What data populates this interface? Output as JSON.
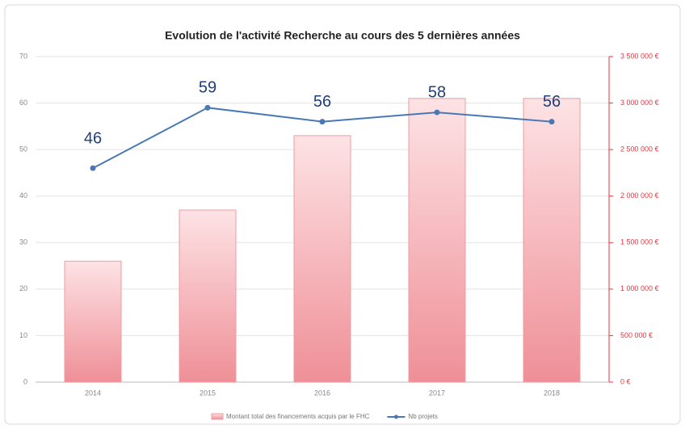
{
  "chart_data": {
    "type": "bar-line",
    "title": "Evolution de l'activité Recherche au cours des 5 dernières années",
    "categories": [
      "2014",
      "2015",
      "2016",
      "2017",
      "2018"
    ],
    "series": [
      {
        "name": "Montant total des financements acquis par le FHC",
        "type": "bar",
        "axis": "y2",
        "color": "#ef9ca2",
        "values": [
          1300000,
          1850000,
          2650000,
          3050000,
          3050000
        ]
      },
      {
        "name": "Nb projets",
        "type": "line",
        "axis": "y",
        "color": "#4a78b5",
        "values": [
          46,
          59,
          56,
          58,
          56
        ]
      }
    ],
    "ylim": [
      0,
      70
    ],
    "yticks": [
      0,
      10,
      20,
      30,
      40,
      50,
      60,
      70
    ],
    "y2lim": [
      0,
      3500000
    ],
    "y2ticks": [
      {
        "value": 0,
        "label": "0 €"
      },
      {
        "value": 500000,
        "label": "500 000 €"
      },
      {
        "value": 1000000,
        "label": "1 000 000 €"
      },
      {
        "value": 1500000,
        "label": "1 500 000 €"
      },
      {
        "value": 2000000,
        "label": "2 000 000 €"
      },
      {
        "value": 2500000,
        "label": "2 500 000 €"
      },
      {
        "value": 3000000,
        "label": "3 000 000 €"
      },
      {
        "value": 3500000,
        "label": "3 500 000 €"
      }
    ],
    "grid": true
  }
}
